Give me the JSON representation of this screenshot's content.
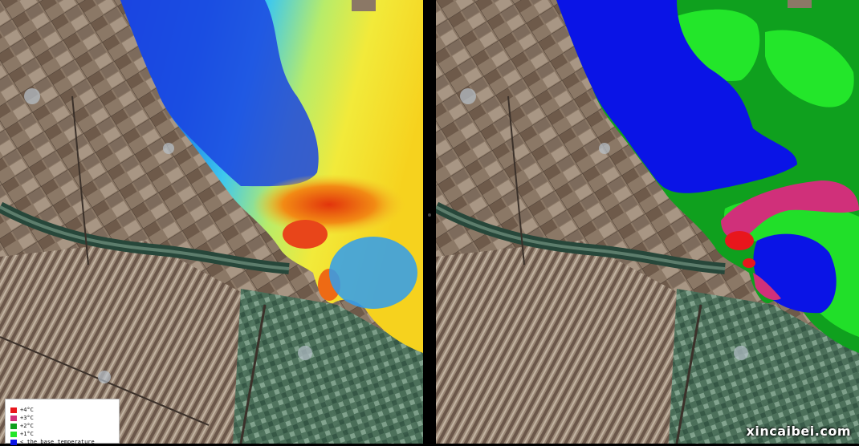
{
  "legend": {
    "items": [
      {
        "label": "+4°C",
        "color": "#e8161c"
      },
      {
        "label": "+3°C",
        "color": "#d0307a"
      },
      {
        "label": "+2°C",
        "color": "#0fa01e"
      },
      {
        "label": "+1°C",
        "color": "#23e62a"
      },
      {
        "label": "< the base temperature",
        "color": "#0a14e6"
      }
    ]
  },
  "watermark": "xincaibei.com",
  "colors": {
    "land": "#8a7a6a",
    "field_dark": "#5c4b3e",
    "field_light": "#b8a896",
    "vegetation": "#3f6b52",
    "river": "#27473a",
    "water_cold": "#1e4fe0",
    "water_cool": "#2fb7f0",
    "water_mild": "#f0e83a",
    "water_warm": "#f08a10",
    "water_hot": "#e83a10"
  }
}
